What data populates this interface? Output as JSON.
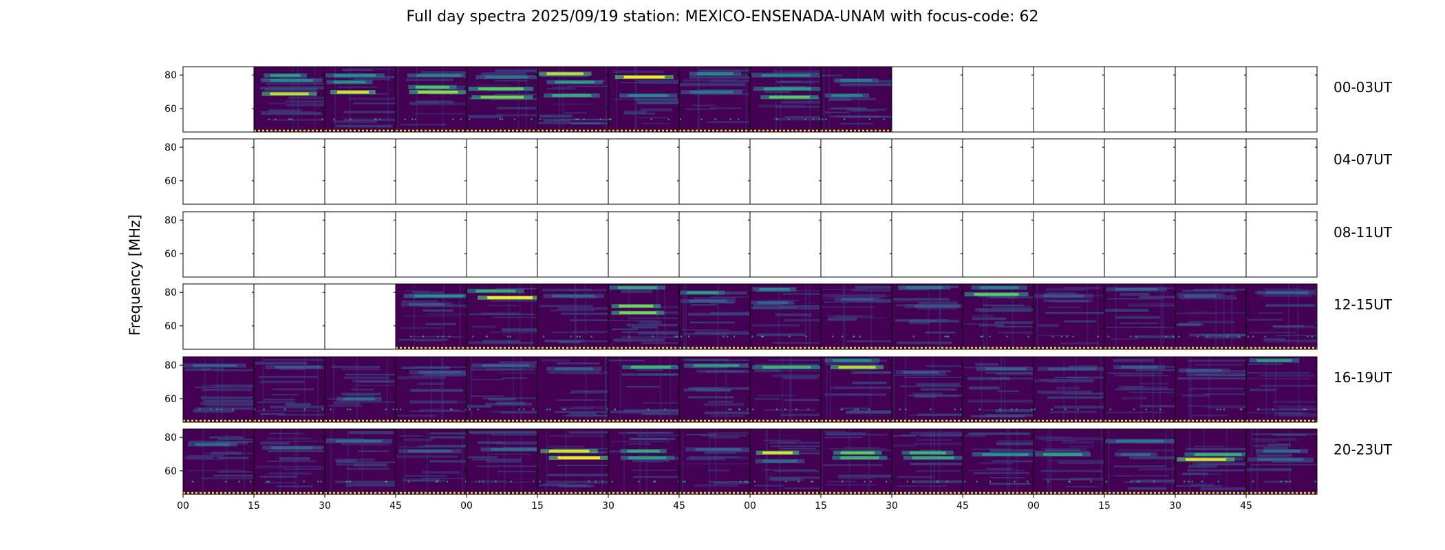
{
  "chart_data": {
    "type": "heatmap",
    "title": "Full day spectra 2025/09/19 station: MEXICO-ENSENADA-UNAM with focus-code: 62",
    "ylabel": "Frequency [MHz]",
    "xlabel": "",
    "ylim": [
      46,
      85
    ],
    "y_ticks": [
      60,
      80
    ],
    "x_tick_labels": [
      "00",
      "15",
      "30",
      "45",
      "00",
      "15",
      "30",
      "45",
      "00",
      "15",
      "30",
      "45",
      "00",
      "15",
      "30",
      "45"
    ],
    "colormap": "viridis",
    "colors": {
      "background": "#440154",
      "low": "#46085c",
      "mid": "#3b528b",
      "teal": "#21918c",
      "green": "#5ec962",
      "high": "#fde725",
      "baseline": "#fde725"
    },
    "rows": [
      {
        "label": "00-03UT",
        "cells": [
          {
            "data": false
          },
          {
            "data": true,
            "bands": [
              {
                "f": 80,
                "i": 0.55
              },
              {
                "f": 69,
                "i": 0.9
              },
              {
                "f": 77,
                "i": 0.45
              }
            ]
          },
          {
            "data": true,
            "bands": [
              {
                "f": 80,
                "i": 0.5
              },
              {
                "f": 70,
                "i": 0.95
              },
              {
                "f": 76,
                "i": 0.5
              }
            ]
          },
          {
            "data": true,
            "bands": [
              {
                "f": 80,
                "i": 0.45
              },
              {
                "f": 70,
                "i": 0.85
              },
              {
                "f": 73,
                "i": 0.7
              }
            ]
          },
          {
            "data": true,
            "bands": [
              {
                "f": 79,
                "i": 0.4
              },
              {
                "f": 72,
                "i": 0.75
              },
              {
                "f": 67,
                "i": 0.8
              }
            ]
          },
          {
            "data": true,
            "bands": [
              {
                "f": 81,
                "i": 0.9
              },
              {
                "f": 76,
                "i": 0.55
              },
              {
                "f": 68,
                "i": 0.6
              }
            ]
          },
          {
            "data": true,
            "bands": [
              {
                "f": 79,
                "i": 1.0
              },
              {
                "f": 68,
                "i": 0.45
              }
            ]
          },
          {
            "data": true,
            "bands": [
              {
                "f": 81,
                "i": 0.45
              },
              {
                "f": 70,
                "i": 0.4
              }
            ]
          },
          {
            "data": true,
            "bands": [
              {
                "f": 80,
                "i": 0.45
              },
              {
                "f": 72,
                "i": 0.55
              },
              {
                "f": 67,
                "i": 0.75
              }
            ]
          },
          {
            "data": true,
            "bands": [
              {
                "f": 77,
                "i": 0.4
              },
              {
                "f": 68,
                "i": 0.45
              }
            ]
          },
          {
            "data": false
          },
          {
            "data": false
          },
          {
            "data": false
          },
          {
            "data": false
          },
          {
            "data": false
          },
          {
            "data": false
          }
        ]
      },
      {
        "label": "04-07UT",
        "cells": [
          {
            "data": false
          },
          {
            "data": false
          },
          {
            "data": false
          },
          {
            "data": false
          },
          {
            "data": false
          },
          {
            "data": false
          },
          {
            "data": false
          },
          {
            "data": false
          },
          {
            "data": false
          },
          {
            "data": false
          },
          {
            "data": false
          },
          {
            "data": false
          },
          {
            "data": false
          },
          {
            "data": false
          },
          {
            "data": false
          },
          {
            "data": false
          }
        ]
      },
      {
        "label": "08-11UT",
        "cells": [
          {
            "data": false
          },
          {
            "data": false
          },
          {
            "data": false
          },
          {
            "data": false
          },
          {
            "data": false
          },
          {
            "data": false
          },
          {
            "data": false
          },
          {
            "data": false
          },
          {
            "data": false
          },
          {
            "data": false
          },
          {
            "data": false
          },
          {
            "data": false
          },
          {
            "data": false
          },
          {
            "data": false
          },
          {
            "data": false
          },
          {
            "data": false
          }
        ]
      },
      {
        "label": "12-15UT",
        "cells": [
          {
            "data": false
          },
          {
            "data": false
          },
          {
            "data": false
          },
          {
            "data": true,
            "bands": [
              {
                "f": 78,
                "i": 0.5
              },
              {
                "f": 73,
                "i": 0.25
              }
            ]
          },
          {
            "data": true,
            "bands": [
              {
                "f": 77,
                "i": 1.0
              },
              {
                "f": 81,
                "i": 0.6
              }
            ]
          },
          {
            "data": true,
            "bands": [
              {
                "f": 78,
                "i": 0.3
              }
            ]
          },
          {
            "data": true,
            "bands": [
              {
                "f": 83,
                "i": 0.6
              },
              {
                "f": 72,
                "i": 0.8
              },
              {
                "f": 68,
                "i": 0.8
              }
            ]
          },
          {
            "data": true,
            "bands": [
              {
                "f": 80,
                "i": 0.55
              },
              {
                "f": 75,
                "i": 0.3
              }
            ]
          },
          {
            "data": true,
            "bands": [
              {
                "f": 82,
                "i": 0.45
              },
              {
                "f": 74,
                "i": 0.3
              }
            ]
          },
          {
            "data": true,
            "bands": [
              {
                "f": 76,
                "i": 0.25
              }
            ]
          },
          {
            "data": true,
            "bands": [
              {
                "f": 83,
                "i": 0.4
              },
              {
                "f": 72,
                "i": 0.25
              }
            ]
          },
          {
            "data": true,
            "bands": [
              {
                "f": 79,
                "i": 0.75
              },
              {
                "f": 83,
                "i": 0.45
              }
            ]
          },
          {
            "data": true,
            "bands": [
              {
                "f": 78,
                "i": 0.25
              }
            ]
          },
          {
            "data": true,
            "bands": [
              {
                "f": 82,
                "i": 0.3
              }
            ]
          },
          {
            "data": true,
            "bands": [
              {
                "f": 78,
                "i": 0.25
              }
            ]
          },
          {
            "data": true,
            "bands": [
              {
                "f": 80,
                "i": 0.3
              }
            ]
          }
        ]
      },
      {
        "label": "16-19UT",
        "cells": [
          {
            "data": true,
            "bands": [
              {
                "f": 80,
                "i": 0.3
              }
            ]
          },
          {
            "data": true,
            "bands": [
              {
                "f": 79,
                "i": 0.25
              }
            ]
          },
          {
            "data": true,
            "bands": [
              {
                "f": 60,
                "i": 0.35
              }
            ]
          },
          {
            "data": true,
            "bands": [
              {
                "f": 76,
                "i": 0.25
              }
            ]
          },
          {
            "data": true,
            "bands": [
              {
                "f": 80,
                "i": 0.3
              }
            ]
          },
          {
            "data": true,
            "bands": [
              {
                "f": 78,
                "i": 0.3
              }
            ]
          },
          {
            "data": true,
            "bands": [
              {
                "f": 79,
                "i": 0.65
              }
            ]
          },
          {
            "data": true,
            "bands": [
              {
                "f": 80,
                "i": 0.55
              }
            ]
          },
          {
            "data": true,
            "bands": [
              {
                "f": 79,
                "i": 0.65
              }
            ]
          },
          {
            "data": true,
            "bands": [
              {
                "f": 79,
                "i": 0.9
              },
              {
                "f": 83,
                "i": 0.5
              }
            ]
          },
          {
            "data": true,
            "bands": [
              {
                "f": 76,
                "i": 0.25
              }
            ]
          },
          {
            "data": true,
            "bands": [
              {
                "f": 78,
                "i": 0.3
              }
            ]
          },
          {
            "data": true,
            "bands": [
              {
                "f": 78,
                "i": 0.25
              }
            ]
          },
          {
            "data": true,
            "bands": [
              {
                "f": 79,
                "i": 0.3
              }
            ]
          },
          {
            "data": true,
            "bands": [
              {
                "f": 77,
                "i": 0.25
              }
            ]
          },
          {
            "data": true,
            "bands": [
              {
                "f": 83,
                "i": 0.55
              }
            ]
          }
        ]
      },
      {
        "label": "20-23UT",
        "cells": [
          {
            "data": true,
            "bands": [
              {
                "f": 76,
                "i": 0.35
              }
            ]
          },
          {
            "data": true,
            "bands": [
              {
                "f": 74,
                "i": 0.3
              }
            ]
          },
          {
            "data": true,
            "bands": [
              {
                "f": 78,
                "i": 0.35
              }
            ]
          },
          {
            "data": true,
            "bands": [
              {
                "f": 72,
                "i": 0.3
              }
            ]
          },
          {
            "data": true,
            "bands": [
              {
                "f": 73,
                "i": 0.35
              }
            ]
          },
          {
            "data": true,
            "bands": [
              {
                "f": 72,
                "i": 0.95
              },
              {
                "f": 68,
                "i": 1.0
              }
            ]
          },
          {
            "data": true,
            "bands": [
              {
                "f": 72,
                "i": 0.6
              },
              {
                "f": 68,
                "i": 0.55
              }
            ]
          },
          {
            "data": true,
            "bands": [
              {
                "f": 73,
                "i": 0.3
              }
            ]
          },
          {
            "data": true,
            "bands": [
              {
                "f": 71,
                "i": 0.95
              },
              {
                "f": 66,
                "i": 0.35
              }
            ]
          },
          {
            "data": true,
            "bands": [
              {
                "f": 71,
                "i": 0.75
              },
              {
                "f": 68,
                "i": 0.65
              }
            ]
          },
          {
            "data": true,
            "bands": [
              {
                "f": 71,
                "i": 0.65
              },
              {
                "f": 68,
                "i": 0.6
              }
            ]
          },
          {
            "data": true,
            "bands": [
              {
                "f": 70,
                "i": 0.5
              }
            ]
          },
          {
            "data": true,
            "bands": [
              {
                "f": 70,
                "i": 0.55
              }
            ]
          },
          {
            "data": true,
            "bands": [
              {
                "f": 78,
                "i": 0.4
              },
              {
                "f": 70,
                "i": 0.3
              }
            ]
          },
          {
            "data": true,
            "bands": [
              {
                "f": 70,
                "i": 0.6
              },
              {
                "f": 67,
                "i": 0.95
              }
            ]
          },
          {
            "data": true,
            "bands": [
              {
                "f": 72,
                "i": 0.35
              },
              {
                "f": 67,
                "i": 0.3
              }
            ]
          }
        ]
      }
    ]
  }
}
